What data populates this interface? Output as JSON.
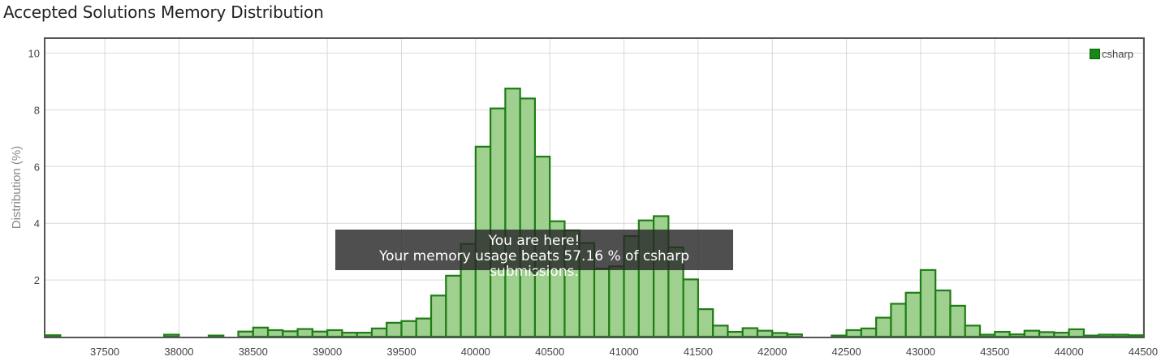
{
  "title": "Accepted Solutions Memory Distribution",
  "tooltip": {
    "line1": "You are here!",
    "line2": "Your memory usage beats 57.16 % of csharp submissions."
  },
  "colors": {
    "bar_fill": "#9fd08f",
    "bar_stroke": "#1e7d14",
    "legend_swatch": "#138a13",
    "grid": "#d9d9d9",
    "axis_frame": "#555555"
  },
  "chart_data": {
    "type": "bar",
    "ylabel": "Distribution (%)",
    "xlabel": "",
    "xlim": [
      37100,
      44500
    ],
    "ylim": [
      0,
      10.5
    ],
    "x_ticks": [
      "37500",
      "38000",
      "38500",
      "39000",
      "39500",
      "40000",
      "40500",
      "41000",
      "41500",
      "42000",
      "42500",
      "43000",
      "43500",
      "44000",
      "44500"
    ],
    "y_ticks": [
      "2",
      "4",
      "6",
      "8",
      "10"
    ],
    "bin_width": 100,
    "grid": true,
    "legend_position": "top-right",
    "series": [
      {
        "name": "csharp",
        "x": [
          37100,
          37900,
          38200,
          38400,
          38500,
          38600,
          38700,
          38800,
          38900,
          39000,
          39100,
          39200,
          39300,
          39400,
          39500,
          39600,
          39700,
          39800,
          39900,
          40000,
          40100,
          40200,
          40300,
          40400,
          40500,
          40600,
          40700,
          40800,
          40900,
          41000,
          41100,
          41200,
          41300,
          41400,
          41500,
          41600,
          41700,
          41800,
          41900,
          42000,
          42100,
          42200,
          42300,
          42400,
          42500,
          42600,
          42700,
          42800,
          42900,
          43000,
          43100,
          43200,
          43300,
          43400,
          43500,
          43600,
          43700,
          43800,
          43900,
          44000,
          44100,
          44200,
          44300,
          44400
        ],
        "values": [
          0.05,
          0.07,
          0.04,
          0.18,
          0.32,
          0.23,
          0.19,
          0.27,
          0.18,
          0.23,
          0.14,
          0.14,
          0.29,
          0.49,
          0.55,
          0.64,
          1.45,
          2.15,
          3.27,
          6.7,
          8.05,
          8.75,
          8.4,
          6.35,
          4.07,
          3.75,
          3.3,
          2.4,
          2.48,
          3.55,
          4.1,
          4.25,
          3.15,
          2.02,
          0.97,
          0.39,
          0.17,
          0.3,
          0.21,
          0.13,
          0.08,
          0.0,
          0.0,
          0.04,
          0.23,
          0.29,
          0.67,
          1.16,
          1.55,
          2.35,
          1.63,
          1.09,
          0.39,
          0.07,
          0.17,
          0.08,
          0.21,
          0.16,
          0.14,
          0.26,
          0.04,
          0.07,
          0.07,
          0.05
        ]
      }
    ]
  }
}
